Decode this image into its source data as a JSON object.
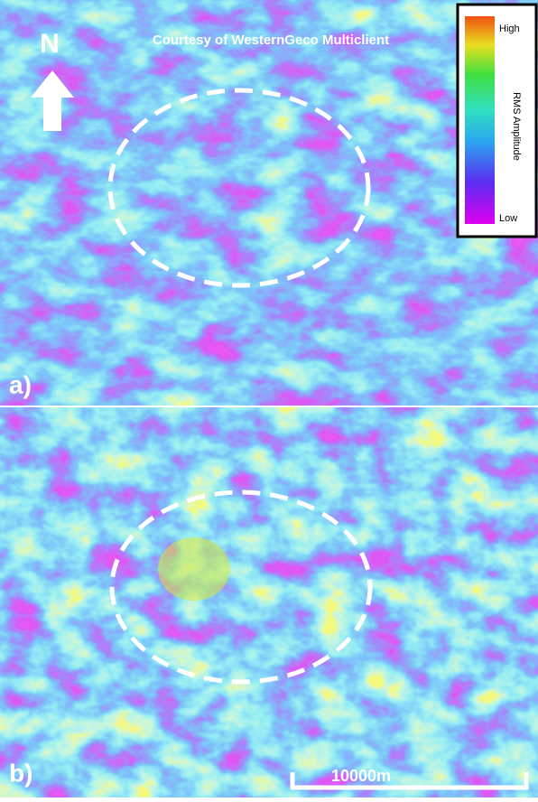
{
  "credit": "Courtesy of WesternGeco Multiclient",
  "north": "N",
  "legend": {
    "high": "High",
    "low": "Low",
    "title": "RMS Amplitude"
  },
  "panels": [
    {
      "label": "a)"
    },
    {
      "label": "b)"
    }
  ],
  "scale_bar": "10000m"
}
